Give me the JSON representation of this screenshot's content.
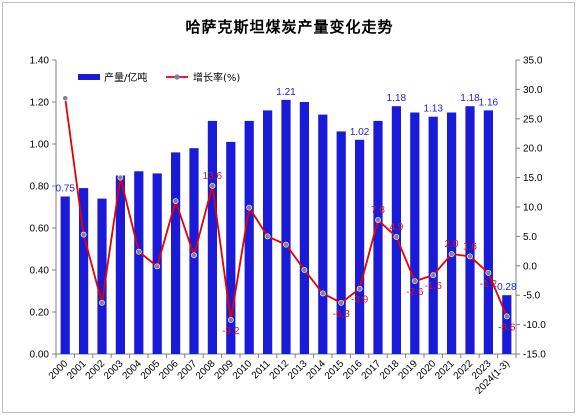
{
  "title": "哈萨克斯坦煤炭产量变化走势",
  "colors": {
    "bar": "#1a1ad9",
    "line": "#e60000",
    "marker": "#7f7f9f",
    "bar_label": "#1f1fd0",
    "growth_label": "#e01010",
    "axis": "#808080"
  },
  "legend": {
    "bar_label": "产量/亿吨",
    "line_label": "增长率(%)"
  },
  "chart_data": {
    "type": "bar",
    "title": "哈萨克斯坦煤炭产量变化走势",
    "categories": [
      "2000",
      "2001",
      "2002",
      "2003",
      "2004",
      "2005",
      "2006",
      "2007",
      "2008",
      "2009",
      "2010",
      "2011",
      "2012",
      "2013",
      "2014",
      "2015",
      "2016",
      "2017",
      "2018",
      "2019",
      "2020",
      "2021",
      "2022",
      "2023",
      "2024(1-3)"
    ],
    "series": [
      {
        "name": "产量/亿吨",
        "type": "bar",
        "axis": "left",
        "values": [
          0.75,
          0.79,
          0.74,
          0.85,
          0.87,
          0.86,
          0.96,
          0.98,
          1.11,
          1.01,
          1.11,
          1.16,
          1.21,
          1.2,
          1.14,
          1.06,
          1.02,
          1.11,
          1.18,
          1.15,
          1.13,
          1.15,
          1.18,
          1.16,
          0.28
        ]
      },
      {
        "name": "增长率(%)",
        "type": "line",
        "axis": "right",
        "values": [
          28.5,
          5.3,
          -6.3,
          15.0,
          2.4,
          -0.1,
          11.0,
          1.8,
          13.6,
          -9.2,
          9.9,
          5.0,
          3.6,
          -0.7,
          -4.7,
          -6.3,
          -3.9,
          7.8,
          4.9,
          -2.6,
          -1.6,
          2.0,
          1.6,
          -1.2,
          -8.6
        ]
      }
    ],
    "bar_data_labels": [
      {
        "index": 0,
        "text": "0.75"
      },
      {
        "index": 12,
        "text": "1.21"
      },
      {
        "index": 16,
        "text": "1.02"
      },
      {
        "index": 18,
        "text": "1.18"
      },
      {
        "index": 20,
        "text": "1.13"
      },
      {
        "index": 22,
        "text": "1.18"
      },
      {
        "index": 23,
        "text": "1.16"
      },
      {
        "index": 24,
        "text": "0.28"
      }
    ],
    "growth_data_labels": [
      {
        "index": 8,
        "text": "13.6"
      },
      {
        "index": 9,
        "text": "-9.2"
      },
      {
        "index": 15,
        "text": "-6.3"
      },
      {
        "index": 16,
        "text": "-3.9"
      },
      {
        "index": 17,
        "text": "7.8"
      },
      {
        "index": 18,
        "text": "4.9"
      },
      {
        "index": 19,
        "text": "-2.6"
      },
      {
        "index": 20,
        "text": "-1.6"
      },
      {
        "index": 21,
        "text": "2.0"
      },
      {
        "index": 22,
        "text": "1.6"
      },
      {
        "index": 23,
        "text": "-1.2"
      },
      {
        "index": 24,
        "text": "-8.6"
      }
    ],
    "y_left": {
      "min": 0,
      "max": 1.4,
      "step": 0.2,
      "ticks": [
        "0.00",
        "0.20",
        "0.40",
        "0.60",
        "0.80",
        "1.00",
        "1.20",
        "1.40"
      ]
    },
    "y_right": {
      "min": -15,
      "max": 35,
      "step": 5,
      "ticks": [
        "-15.0",
        "-10.0",
        "-5.0",
        "0.0",
        "5.0",
        "10.0",
        "15.0",
        "20.0",
        "25.0",
        "30.0",
        "35.0"
      ]
    },
    "grid": false,
    "legend_position": "top-left"
  }
}
